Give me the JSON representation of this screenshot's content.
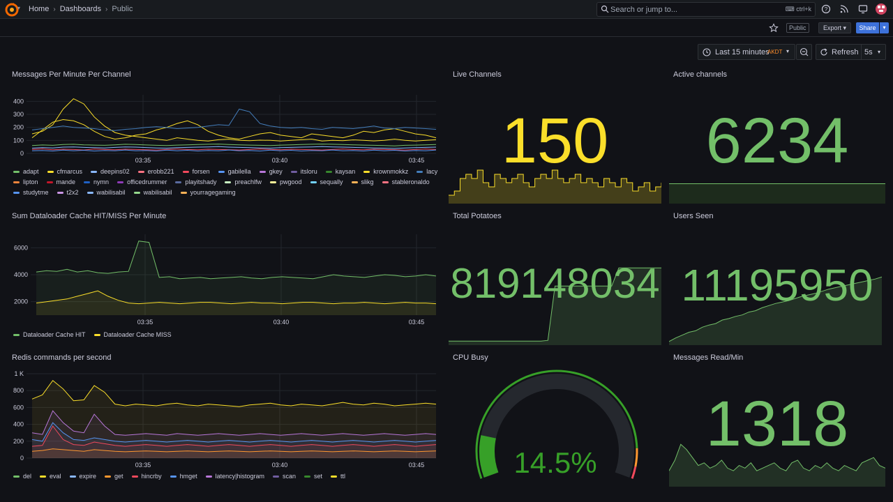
{
  "header": {
    "breadcrumbs": [
      "Home",
      "Dashboards",
      "Public"
    ],
    "search_placeholder": "Search or jump to...",
    "search_shortcut": "ctrl+k"
  },
  "toolbar": {
    "public_tag": "Public",
    "export_label": "Export",
    "share_label": "Share"
  },
  "time_controls": {
    "range_label": "Last 15 minutes",
    "timezone": "AKDT",
    "refresh_label": "Refresh",
    "refresh_interval": "5s"
  },
  "colors": {
    "accent_green": "#73bf69",
    "accent_yellow": "#fade2a",
    "primary_blue": "#3d71d9"
  },
  "panels": {
    "messages": {
      "title": "Messages Per Minute Per Channel",
      "legend": [
        {
          "name": "adapt",
          "color": "#73bf69"
        },
        {
          "name": "cfmarcus",
          "color": "#fade2a"
        },
        {
          "name": "deepins02",
          "color": "#8ab8ff"
        },
        {
          "name": "erobb221",
          "color": "#ff7383"
        },
        {
          "name": "forsen",
          "color": "#f2495c"
        },
        {
          "name": "gabilella",
          "color": "#5794f2"
        },
        {
          "name": "gkey",
          "color": "#b877d9"
        },
        {
          "name": "itsloru",
          "color": "#705da0"
        },
        {
          "name": "kaysan",
          "color": "#37872d"
        },
        {
          "name": "krownmokkz",
          "color": "#fade2a"
        },
        {
          "name": "lacy",
          "color": "#447ebc"
        },
        {
          "name": "lipton",
          "color": "#ef843c"
        },
        {
          "name": "mande",
          "color": "#c4162a"
        },
        {
          "name": "nymn",
          "color": "#1f60c4"
        },
        {
          "name": "officedrummer",
          "color": "#8f3bb8"
        },
        {
          "name": "playitshady",
          "color": "#5a6ba0"
        },
        {
          "name": "preachlfw",
          "color": "#c8f2c2"
        },
        {
          "name": "pwgood",
          "color": "#fff899"
        },
        {
          "name": "sequally",
          "color": "#73d3ff"
        },
        {
          "name": "slikg",
          "color": "#ffb357"
        },
        {
          "name": "stableronaldo",
          "color": "#ff7383"
        },
        {
          "name": "studytme",
          "color": "#5794f2"
        },
        {
          "name": "t2x2",
          "color": "#ca95e5"
        },
        {
          "name": "wabilisabil",
          "color": "#8ab8ff"
        },
        {
          "name": "wabilisabil",
          "color": "#96d98d"
        },
        {
          "name": "yourragegaming",
          "color": "#ffb357"
        }
      ]
    },
    "cache": {
      "title": "Sum Dataloader Cache HIT/MISS Per Minute",
      "legend": [
        {
          "name": "Dataloader Cache HIT",
          "color": "#73bf69"
        },
        {
          "name": "Dataloader Cache MISS",
          "color": "#fade2a"
        }
      ]
    },
    "redis": {
      "title": "Redis commands per second",
      "legend": [
        {
          "name": "del",
          "color": "#73bf69"
        },
        {
          "name": "eval",
          "color": "#fade2a"
        },
        {
          "name": "expire",
          "color": "#8ab8ff"
        },
        {
          "name": "get",
          "color": "#ff9830"
        },
        {
          "name": "hincrby",
          "color": "#f2495c"
        },
        {
          "name": "hmget",
          "color": "#5794f2"
        },
        {
          "name": "latency|histogram",
          "color": "#b877d9"
        },
        {
          "name": "scan",
          "color": "#705da0"
        },
        {
          "name": "set",
          "color": "#37872d"
        },
        {
          "name": "ttl",
          "color": "#fade2a"
        }
      ]
    },
    "live_channels": {
      "title": "Live Channels",
      "value": "150"
    },
    "active_channels": {
      "title": "Active channels",
      "value": "6234"
    },
    "total_potatoes": {
      "title": "Total Potatoes",
      "value": "819148034"
    },
    "users_seen": {
      "title": "Users Seen",
      "value": "11195950"
    },
    "cpu_busy": {
      "title": "CPU Busy",
      "value": "14.5%",
      "fraction": 0.145
    },
    "messages_read": {
      "title": "Messages Read/Min",
      "value": "1318"
    }
  },
  "chart_data": [
    {
      "type": "line",
      "title": "Messages Per Minute Per Channel",
      "x_ticks": [
        "03:35",
        "03:40",
        "03:45"
      ],
      "y_ticks": [
        "0",
        "100",
        "200",
        "300",
        "400"
      ],
      "ylim": [
        0,
        450
      ],
      "series": [
        {
          "name": "cfmarcus",
          "values": [
            150,
            170,
            220,
            340,
            420,
            380,
            280,
            210,
            160,
            140,
            130,
            120,
            110,
            100,
            120,
            110,
            100,
            95,
            105,
            110,
            100,
            98,
            102,
            100,
            95,
            100,
            105,
            110,
            95,
            100,
            98,
            104,
            100,
            96,
            100,
            110,
            100,
            95,
            100,
            105
          ]
        },
        {
          "name": "krownmokkz",
          "values": [
            120,
            180,
            240,
            260,
            250,
            220,
            170,
            130,
            110,
            120,
            140,
            150,
            180,
            200,
            230,
            250,
            220,
            170,
            140,
            120,
            110,
            130,
            150,
            160,
            140,
            130,
            120,
            150,
            140,
            130,
            120,
            140,
            170,
            160,
            180,
            190,
            170,
            150,
            140,
            120
          ]
        },
        {
          "name": "lacy",
          "values": [
            180,
            190,
            200,
            210,
            200,
            195,
            190,
            180,
            175,
            185,
            190,
            200,
            205,
            200,
            190,
            195,
            200,
            210,
            220,
            215,
            340,
            320,
            230,
            210,
            200,
            195,
            200,
            190,
            185,
            200,
            195,
            190,
            200,
            210,
            195,
            190,
            200,
            195,
            190,
            185
          ]
        },
        {
          "name": "adapt",
          "values": [
            60,
            65,
            62,
            68,
            70,
            66,
            64,
            62,
            66,
            70,
            68,
            65,
            62,
            60,
            64,
            66,
            68,
            70,
            72,
            68,
            66,
            64,
            62,
            60,
            64,
            66,
            68,
            70,
            72,
            70,
            68,
            66,
            64,
            62,
            60,
            58,
            62,
            64,
            66,
            68
          ]
        },
        {
          "name": "deepins02",
          "values": [
            40,
            45,
            42,
            48,
            50,
            46,
            44,
            42,
            46,
            50,
            48,
            45,
            42,
            40,
            44,
            46,
            48,
            50,
            52,
            48,
            46,
            44,
            42,
            40,
            44,
            46,
            48,
            50,
            52,
            50,
            48,
            46,
            44,
            42,
            40,
            38,
            42,
            44,
            46,
            48
          ]
        },
        {
          "name": "forsen",
          "values": [
            30,
            35,
            28,
            32,
            30,
            26,
            34,
            30,
            28,
            32,
            30,
            28,
            26,
            30,
            34,
            30,
            28,
            32,
            30,
            28,
            26,
            30,
            34,
            30,
            28,
            32,
            30,
            28,
            26,
            30,
            34,
            30,
            28,
            32,
            30,
            28,
            26,
            30,
            34,
            30
          ]
        },
        {
          "name": "studytme",
          "values": [
            20,
            22,
            18,
            25,
            20,
            24,
            18,
            22,
            20,
            26,
            20,
            22,
            18,
            25,
            20,
            24,
            18,
            22,
            20,
            26,
            20,
            22,
            18,
            25,
            20,
            24,
            18,
            22,
            20,
            26,
            20,
            22,
            18,
            25,
            20,
            24,
            18,
            22,
            20,
            26
          ]
        }
      ]
    },
    {
      "type": "area",
      "title": "Sum Dataloader Cache HIT/MISS Per Minute",
      "x_ticks": [
        "03:35",
        "03:40",
        "03:45"
      ],
      "y_ticks": [
        "2000",
        "4000",
        "6000"
      ],
      "ylim": [
        1000,
        7000
      ],
      "series": [
        {
          "name": "Dataloader Cache HIT",
          "values": [
            4200,
            4300,
            4250,
            4400,
            4200,
            4300,
            4150,
            4100,
            4200,
            4250,
            6500,
            6400,
            3800,
            3850,
            3700,
            3750,
            3800,
            3700,
            3750,
            3800,
            3850,
            3750,
            3700,
            3800,
            3850,
            3800,
            3750,
            3700,
            3850,
            4000,
            3900,
            3850,
            3800,
            3900,
            4000,
            3950,
            3850,
            3900,
            4000,
            3900
          ]
        },
        {
          "name": "Dataloader Cache MISS",
          "values": [
            1900,
            2000,
            2100,
            2200,
            2400,
            2600,
            2800,
            2400,
            2100,
            1900,
            1850,
            1900,
            1950,
            1900,
            1850,
            1900,
            1950,
            1950,
            1900,
            1850,
            1900,
            1950,
            1900,
            1900,
            1850,
            1900,
            1950,
            1950,
            1900,
            1850,
            1900,
            1900,
            1950,
            1900,
            1850,
            1900,
            1950,
            1900,
            1900,
            1850
          ]
        }
      ]
    },
    {
      "type": "area",
      "title": "Redis commands per second",
      "x_ticks": [
        "03:35",
        "03:40",
        "03:45"
      ],
      "y_ticks": [
        "0",
        "200",
        "400",
        "600",
        "800",
        "1 K"
      ],
      "ylim": [
        0,
        1000
      ],
      "series": [
        {
          "name": "eval",
          "values": [
            700,
            750,
            920,
            820,
            680,
            690,
            860,
            780,
            640,
            620,
            640,
            630,
            620,
            640,
            650,
            630,
            620,
            640,
            630,
            620,
            610,
            630,
            640,
            650,
            630,
            620,
            640,
            630,
            620,
            640,
            660,
            640,
            630,
            650,
            640,
            620,
            630,
            640,
            650,
            640
          ]
        },
        {
          "name": "latency|histogram",
          "values": [
            300,
            280,
            560,
            420,
            320,
            300,
            520,
            380,
            280,
            270,
            280,
            290,
            280,
            270,
            290,
            280,
            270,
            280,
            290,
            280,
            270,
            280,
            290,
            280,
            270,
            280,
            290,
            280,
            270,
            280,
            290,
            280,
            270,
            280,
            290,
            280,
            270,
            280,
            290,
            280
          ]
        },
        {
          "name": "hmget",
          "values": [
            220,
            200,
            420,
            300,
            220,
            210,
            240,
            220,
            200,
            190,
            200,
            210,
            200,
            190,
            200,
            210,
            200,
            190,
            200,
            210,
            200,
            190,
            200,
            210,
            200,
            190,
            200,
            210,
            200,
            190,
            200,
            210,
            200,
            190,
            200,
            210,
            200,
            190,
            200,
            210
          ]
        },
        {
          "name": "hincrby",
          "values": [
            140,
            150,
            380,
            220,
            160,
            150,
            190,
            170,
            150,
            140,
            150,
            160,
            150,
            140,
            150,
            160,
            150,
            140,
            150,
            160,
            150,
            140,
            150,
            160,
            150,
            140,
            150,
            160,
            150,
            140,
            150,
            160,
            150,
            140,
            150,
            160,
            150,
            140,
            150,
            160
          ]
        },
        {
          "name": "get",
          "values": [
            80,
            90,
            110,
            100,
            90,
            80,
            100,
            90,
            80,
            75,
            80,
            85,
            80,
            75,
            80,
            85,
            80,
            75,
            80,
            85,
            80,
            75,
            80,
            85,
            80,
            75,
            80,
            85,
            80,
            75,
            80,
            85,
            80,
            75,
            80,
            85,
            80,
            75,
            80,
            85
          ]
        }
      ]
    },
    {
      "type": "area",
      "title": "Live Channels",
      "series": [
        {
          "name": "",
          "values": [
            0.2,
            0.3,
            0.6,
            0.7,
            0.6,
            0.8,
            0.5,
            0.4,
            0.7,
            0.6,
            0.5,
            0.6,
            0.7,
            0.5,
            0.4,
            0.6,
            0.7,
            0.6,
            0.8,
            0.6,
            0.5,
            0.6,
            0.7,
            0.5,
            0.6,
            0.5,
            0.4,
            0.6,
            0.5,
            0.4,
            0.6,
            0.5,
            0.3,
            0.4,
            0.5,
            0.3,
            0.4,
            0.5
          ]
        }
      ]
    },
    {
      "type": "area",
      "title": "Total Potatoes",
      "series": [
        {
          "name": "",
          "values": [
            0.05,
            0.05,
            0.05,
            0.05,
            0.05,
            0.05,
            0.05,
            0.05,
            0.05,
            0.05,
            0.05,
            0.05,
            0.05,
            0.05,
            0.06,
            0.75,
            0.75,
            0.75,
            0.75,
            0.75,
            0.75,
            0.75,
            0.75,
            0.75,
            0.98,
            0.98,
            0.98,
            0.98,
            0.98,
            0.98,
            0.98
          ]
        }
      ]
    },
    {
      "type": "area",
      "title": "Users Seen",
      "series": [
        {
          "name": "",
          "values": [
            0.05,
            0.1,
            0.14,
            0.18,
            0.2,
            0.25,
            0.28,
            0.3,
            0.35,
            0.37,
            0.4,
            0.42,
            0.46,
            0.48,
            0.52,
            0.55,
            0.58,
            0.6,
            0.62,
            0.65,
            0.68,
            0.7,
            0.72,
            0.75,
            0.78,
            0.8,
            0.82,
            0.84,
            0.86,
            0.88,
            0.9,
            0.92,
            0.95
          ]
        }
      ]
    },
    {
      "type": "area",
      "title": "Messages Read/Min",
      "series": [
        {
          "name": "",
          "values": [
            0.3,
            0.5,
            0.8,
            0.7,
            0.55,
            0.4,
            0.45,
            0.35,
            0.4,
            0.5,
            0.35,
            0.3,
            0.4,
            0.35,
            0.45,
            0.3,
            0.35,
            0.4,
            0.45,
            0.35,
            0.3,
            0.45,
            0.5,
            0.35,
            0.3,
            0.4,
            0.35,
            0.45,
            0.35,
            0.3,
            0.4,
            0.35,
            0.3,
            0.45,
            0.5,
            0.55,
            0.4,
            0.35
          ]
        }
      ]
    }
  ]
}
